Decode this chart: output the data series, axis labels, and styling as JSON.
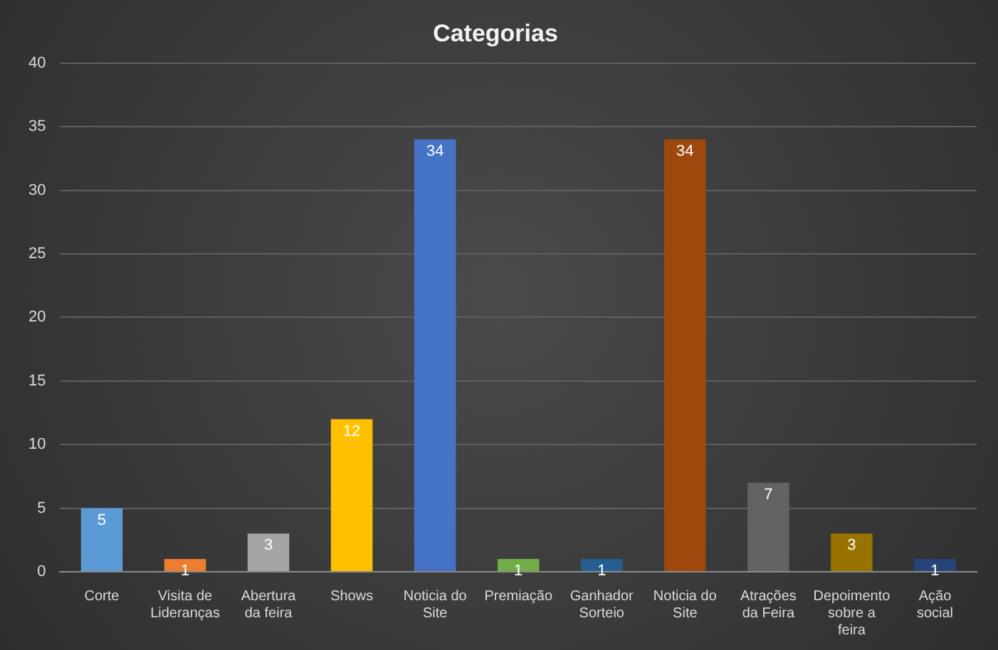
{
  "chart_data": {
    "type": "bar",
    "title": "Categorias",
    "categories": [
      "Corte",
      "Visita de Lideranças",
      "Abertura da feira",
      "Shows",
      "Noticia do Site",
      "Premiação",
      "Ganhador Sorteio",
      "Noticia do Site",
      "Atrações da Feira",
      "Depoimento sobre a feira",
      "Ação social"
    ],
    "values": [
      5,
      1,
      3,
      12,
      34,
      1,
      1,
      34,
      7,
      3,
      1
    ],
    "colors": [
      "#5b9bd5",
      "#ed7d31",
      "#a5a5a5",
      "#ffc000",
      "#4472c4",
      "#70ad47",
      "#255e91",
      "#9e480e",
      "#636363",
      "#997300",
      "#264478"
    ],
    "ylim": [
      0,
      40
    ],
    "yticks": [
      0,
      5,
      10,
      15,
      20,
      25,
      30,
      35,
      40
    ],
    "grid": "y",
    "data_labels": true,
    "legend": false
  }
}
